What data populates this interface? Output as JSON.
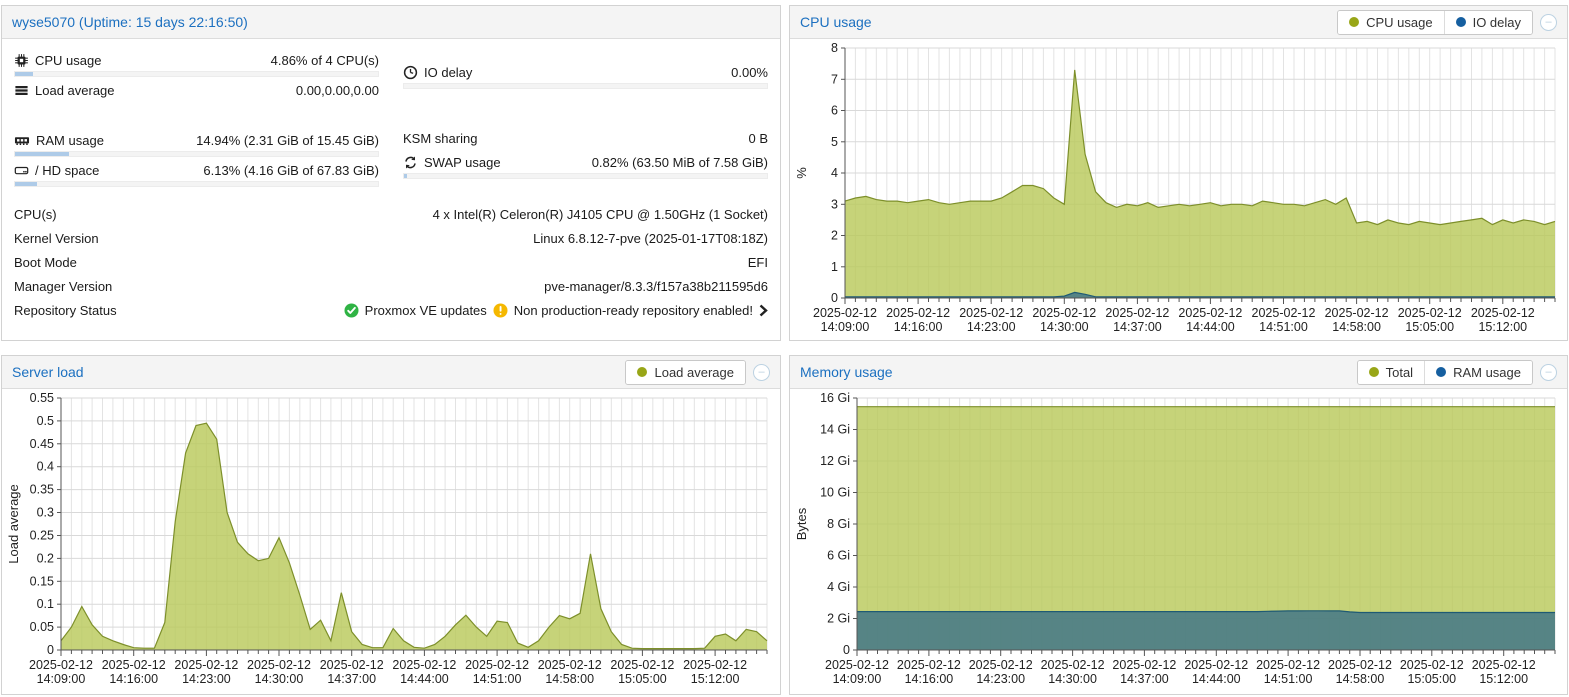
{
  "node_panel": {
    "title": "wyse5070 (Uptime: 15 days 22:16:50)",
    "gauges_left": [
      {
        "name": "cpu-usage",
        "icon": "cpu-icon",
        "label": "CPU usage",
        "value": "4.86% of 4 CPU(s)",
        "pct": 4.86
      },
      {
        "name": "load-average",
        "icon": "bars-icon",
        "label": "Load average",
        "value": "0.00,0.00,0.00",
        "pct": null
      },
      {
        "spacer": 26
      },
      {
        "name": "ram-usage",
        "icon": "memory-icon",
        "label": "RAM usage",
        "value": "14.94% (2.31 GiB of 15.45 GiB)",
        "pct": 14.94
      },
      {
        "name": "hd-space",
        "icon": "hdd-icon",
        "label": "/ HD space",
        "value": "6.13% (4.16 GiB of 67.83 GiB)",
        "pct": 6.13
      }
    ],
    "gauges_right": [
      {
        "spacer": 12
      },
      {
        "name": "io-delay",
        "icon": "clock-icon",
        "label": "IO delay",
        "value": "0.00%",
        "pct": 0
      },
      {
        "spacer": 36
      },
      {
        "name": "ksm-sharing",
        "icon": null,
        "label": "KSM sharing",
        "value": "0 B",
        "pct": null
      },
      {
        "name": "swap-usage",
        "icon": "swap-icon",
        "label": "SWAP usage",
        "value": "0.82% (63.50 MiB of 7.58 GiB)",
        "pct": 0.82
      }
    ],
    "info_rows": [
      {
        "name": "cpus",
        "label": "CPU(s)",
        "value": "4 x Intel(R) Celeron(R) J4105 CPU @ 1.50GHz (1 Socket)"
      },
      {
        "name": "kernel-version",
        "label": "Kernel Version",
        "value": "Linux 6.8.12-7-pve (2025-01-17T08:18Z)"
      },
      {
        "name": "boot-mode",
        "label": "Boot Mode",
        "value": "EFI"
      },
      {
        "name": "manager-version",
        "label": "Manager Version",
        "value": "pve-manager/8.3.3/f157a38b211595d6"
      }
    ],
    "repository": {
      "label": "Repository Status",
      "ok_text": "Proxmox VE updates",
      "warn_text": "Non production-ready repository enabled!",
      "ok_color": "#2fb344",
      "warn_color": "#f5b800"
    },
    "bar_fill": "#aecbe8",
    "bar_track": "#f4f4f4"
  },
  "chart_data": [
    {
      "id": "cpu",
      "type": "area",
      "title": "CPU usage",
      "ylabel": "%",
      "ymax": 8,
      "ytick": 1,
      "tick_format": "num",
      "x_date": "2025-02-12",
      "x_times": [
        "14:09:00",
        "14:16:00",
        "14:23:00",
        "14:30:00",
        "14:37:00",
        "14:44:00",
        "14:51:00",
        "14:58:00",
        "15:05:00",
        "15:12:00"
      ],
      "points_per_label": 7,
      "n": 69,
      "legend": [
        {
          "label": "CPU usage",
          "color": "#98a617"
        },
        {
          "label": "IO delay",
          "color": "#155fa0"
        }
      ],
      "series": [
        {
          "name": "CPU usage",
          "fill": "#b9c95c",
          "stroke": "#7d8f2a",
          "values": [
            3.1,
            3.2,
            3.25,
            3.15,
            3.1,
            3.1,
            3.05,
            3.1,
            3.15,
            3.05,
            3.0,
            3.05,
            3.1,
            3.1,
            3.1,
            3.2,
            3.4,
            3.6,
            3.6,
            3.5,
            3.2,
            3.0,
            7.3,
            4.6,
            3.4,
            3.05,
            2.9,
            3.0,
            2.95,
            3.05,
            2.9,
            2.95,
            3.0,
            2.95,
            3.0,
            3.05,
            2.95,
            3.0,
            3.0,
            2.95,
            3.1,
            3.05,
            3.0,
            3.0,
            2.95,
            3.05,
            3.15,
            3.0,
            3.2,
            2.4,
            2.45,
            2.35,
            2.5,
            2.4,
            2.35,
            2.45,
            2.4,
            2.35,
            2.4,
            2.45,
            2.5,
            2.55,
            2.35,
            2.5,
            2.4,
            2.5,
            2.45,
            2.35,
            2.45
          ]
        },
        {
          "name": "IO delay",
          "fill": "#3d7387",
          "stroke": "#1f5a74",
          "values": [
            0.04,
            0.04,
            0.04,
            0.04,
            0.04,
            0.04,
            0.04,
            0.04,
            0.04,
            0.04,
            0.04,
            0.04,
            0.04,
            0.04,
            0.04,
            0.04,
            0.04,
            0.04,
            0.04,
            0.04,
            0.04,
            0.06,
            0.18,
            0.12,
            0.04,
            0.04,
            0.04,
            0.04,
            0.04,
            0.04,
            0.04,
            0.04,
            0.04,
            0.04,
            0.04,
            0.04,
            0.04,
            0.04,
            0.04,
            0.04,
            0.04,
            0.04,
            0.04,
            0.04,
            0.04,
            0.04,
            0.04,
            0.04,
            0.04,
            0.04,
            0.04,
            0.04,
            0.04,
            0.04,
            0.04,
            0.04,
            0.04,
            0.04,
            0.04,
            0.04,
            0.04,
            0.04,
            0.04,
            0.04,
            0.04,
            0.04,
            0.04,
            0.04,
            0.04
          ]
        }
      ]
    },
    {
      "id": "load",
      "type": "area",
      "title": "Server load",
      "ylabel": "Load average",
      "ymax": 0.55,
      "ytick": 0.05,
      "tick_format": "dec",
      "x_date": "2025-02-12",
      "x_times": [
        "14:09:00",
        "14:16:00",
        "14:23:00",
        "14:30:00",
        "14:37:00",
        "14:44:00",
        "14:51:00",
        "14:58:00",
        "15:05:00",
        "15:12:00"
      ],
      "points_per_label": 7,
      "n": 69,
      "legend": [
        {
          "label": "Load average",
          "color": "#98a617"
        }
      ],
      "series": [
        {
          "name": "Load average",
          "fill": "#b9c95c",
          "stroke": "#7d8f2a",
          "values": [
            0.02,
            0.05,
            0.095,
            0.055,
            0.03,
            0.02,
            0.012,
            0.005,
            0.004,
            0.004,
            0.06,
            0.28,
            0.43,
            0.49,
            0.495,
            0.46,
            0.3,
            0.235,
            0.21,
            0.195,
            0.2,
            0.245,
            0.19,
            0.12,
            0.045,
            0.065,
            0.02,
            0.125,
            0.04,
            0.012,
            0.005,
            0.005,
            0.047,
            0.02,
            0.006,
            0.004,
            0.012,
            0.03,
            0.055,
            0.076,
            0.05,
            0.03,
            0.063,
            0.06,
            0.015,
            0.006,
            0.02,
            0.05,
            0.075,
            0.068,
            0.08,
            0.21,
            0.09,
            0.04,
            0.012,
            0.004,
            0.003,
            0.003,
            0.003,
            0.003,
            0.003,
            0.003,
            0.004,
            0.03,
            0.035,
            0.02,
            0.045,
            0.04,
            0.02
          ]
        }
      ]
    },
    {
      "id": "memory",
      "type": "area",
      "title": "Memory usage",
      "ylabel": "Bytes",
      "ymax": 16,
      "ytick": 2,
      "tick_format": "gi",
      "x_date": "2025-02-12",
      "x_times": [
        "14:09:00",
        "14:16:00",
        "14:23:00",
        "14:30:00",
        "14:37:00",
        "14:44:00",
        "14:51:00",
        "14:58:00",
        "15:05:00",
        "15:12:00"
      ],
      "points_per_label": 7,
      "n": 69,
      "legend": [
        {
          "label": "Total",
          "color": "#98a617"
        },
        {
          "label": "RAM usage",
          "color": "#155fa0"
        }
      ],
      "series": [
        {
          "name": "Total",
          "fill": "#b9c95c",
          "stroke": "#7d8f2a",
          "values": 15.45
        },
        {
          "name": "RAM usage",
          "fill": "#3d7387",
          "stroke": "#1f5a74",
          "values": [
            2.44,
            2.44,
            2.44,
            2.44,
            2.44,
            2.44,
            2.44,
            2.44,
            2.44,
            2.44,
            2.44,
            2.44,
            2.44,
            2.44,
            2.44,
            2.44,
            2.44,
            2.44,
            2.44,
            2.44,
            2.44,
            2.44,
            2.44,
            2.44,
            2.44,
            2.44,
            2.44,
            2.44,
            2.44,
            2.44,
            2.44,
            2.44,
            2.44,
            2.44,
            2.44,
            2.44,
            2.44,
            2.44,
            2.44,
            2.44,
            2.46,
            2.47,
            2.48,
            2.48,
            2.49,
            2.49,
            2.48,
            2.48,
            2.42,
            2.38,
            2.38,
            2.38,
            2.38,
            2.38,
            2.38,
            2.38,
            2.38,
            2.38,
            2.38,
            2.38,
            2.38,
            2.38,
            2.38,
            2.38,
            2.38,
            2.38,
            2.38,
            2.38,
            2.38
          ]
        }
      ]
    }
  ],
  "ui": {
    "collapse_glyph": "–"
  }
}
